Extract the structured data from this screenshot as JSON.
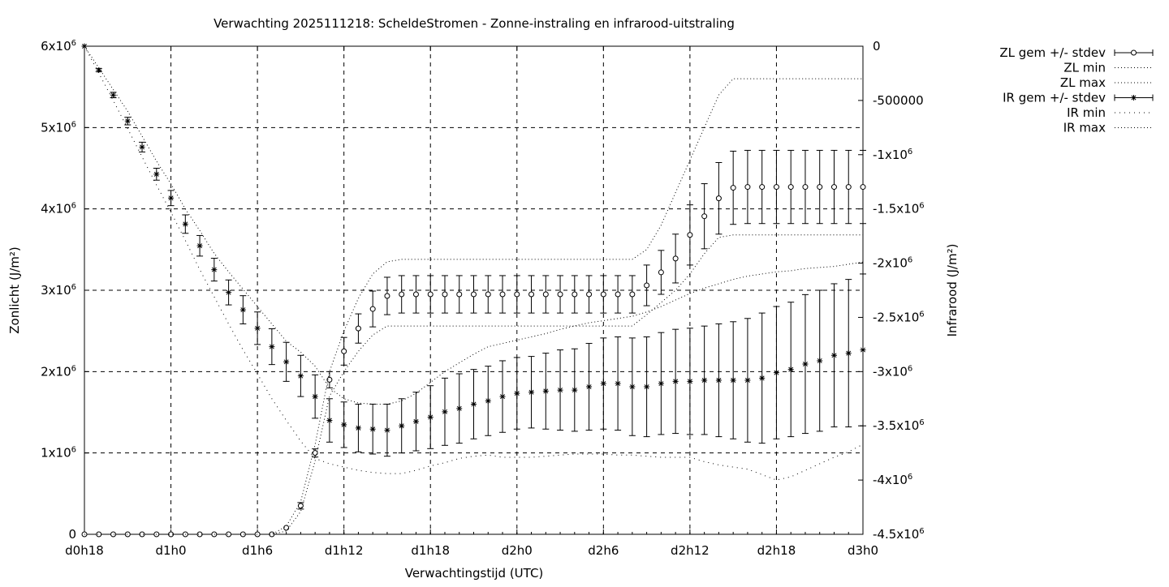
{
  "chart_data": {
    "type": "line",
    "title": "Verwachting 2025111218: ScheldeStromen - Zonne-instraling en infrarood-uitstraling",
    "xlabel": "Verwachtingstijd (UTC)",
    "ylabel": "Zonlicht (J/m²)",
    "y2label": "Infrarood (J/m²)",
    "x_unit": "forecast hour",
    "xlim": [
      18,
      72
    ],
    "ylim": [
      0,
      6000000
    ],
    "y2lim": [
      -4500000,
      0
    ],
    "grid": true,
    "legend_position": "outside-top-right",
    "x_ticks": [
      {
        "x": 18,
        "label": "d0h18"
      },
      {
        "x": 24,
        "label": "d1h0"
      },
      {
        "x": 30,
        "label": "d1h6"
      },
      {
        "x": 36,
        "label": "d1h12"
      },
      {
        "x": 42,
        "label": "d1h18"
      },
      {
        "x": 48,
        "label": "d2h0"
      },
      {
        "x": 54,
        "label": "d2h6"
      },
      {
        "x": 60,
        "label": "d2h12"
      },
      {
        "x": 66,
        "label": "d2h18"
      },
      {
        "x": 72,
        "label": "d3h0"
      }
    ],
    "y_ticks": [
      {
        "v": 0,
        "base": "0",
        "exp": ""
      },
      {
        "v": 1000000,
        "base": "1x10",
        "exp": "6"
      },
      {
        "v": 2000000,
        "base": "2x10",
        "exp": "6"
      },
      {
        "v": 3000000,
        "base": "3x10",
        "exp": "6"
      },
      {
        "v": 4000000,
        "base": "4x10",
        "exp": "6"
      },
      {
        "v": 5000000,
        "base": "5x10",
        "exp": "6"
      },
      {
        "v": 6000000,
        "base": "6x10",
        "exp": "6"
      }
    ],
    "y2_ticks": [
      {
        "v": 0,
        "base": "0",
        "exp": ""
      },
      {
        "v": -500000,
        "base": "-500000",
        "exp": ""
      },
      {
        "v": -1000000,
        "base": "-1x10",
        "exp": "6"
      },
      {
        "v": -1500000,
        "base": "-1.5x10",
        "exp": "6"
      },
      {
        "v": -2000000,
        "base": "-2x10",
        "exp": "6"
      },
      {
        "v": -2500000,
        "base": "-2.5x10",
        "exp": "6"
      },
      {
        "v": -3000000,
        "base": "-3x10",
        "exp": "6"
      },
      {
        "v": -3500000,
        "base": "-3.5x10",
        "exp": "6"
      },
      {
        "v": -4000000,
        "base": "-4x10",
        "exp": "6"
      },
      {
        "v": -4500000,
        "base": "-4.5x10",
        "exp": "6"
      }
    ],
    "series": [
      {
        "name": "ZL gem +/- stdev",
        "axis": "y1",
        "marker": "circle",
        "x": [
          18,
          19,
          20,
          21,
          22,
          23,
          24,
          25,
          26,
          27,
          28,
          29,
          30,
          31,
          32,
          33,
          34,
          35,
          36,
          37,
          38,
          39,
          40,
          41,
          42,
          43,
          44,
          45,
          46,
          47,
          48,
          49,
          50,
          51,
          52,
          53,
          54,
          55,
          56,
          57,
          58,
          59,
          60,
          61,
          62,
          63,
          64,
          65,
          66,
          67,
          68,
          69,
          70,
          71,
          72
        ],
        "y": [
          0,
          0,
          0,
          0,
          0,
          0,
          0,
          0,
          0,
          0,
          0,
          0,
          0,
          0,
          80000,
          350000,
          1000000,
          1900000,
          2250000,
          2530000,
          2770000,
          2930000,
          2950000,
          2950000,
          2950000,
          2950000,
          2950000,
          2950000,
          2950000,
          2950000,
          2950000,
          2950000,
          2950000,
          2950000,
          2950000,
          2950000,
          2950000,
          2950000,
          2950000,
          3060000,
          3220000,
          3390000,
          3680000,
          3910000,
          4130000,
          4260000,
          4270000,
          4270000,
          4270000,
          4270000,
          4270000,
          4270000,
          4270000,
          4270000,
          4270000
        ],
        "err": [
          0,
          0,
          0,
          0,
          0,
          0,
          0,
          0,
          0,
          0,
          0,
          0,
          0,
          0,
          0,
          40000,
          50000,
          100000,
          170000,
          180000,
          220000,
          230000,
          230000,
          230000,
          230000,
          230000,
          230000,
          230000,
          230000,
          230000,
          230000,
          230000,
          230000,
          230000,
          230000,
          230000,
          230000,
          230000,
          230000,
          250000,
          270000,
          300000,
          370000,
          400000,
          440000,
          450000,
          450000,
          450000,
          450000,
          450000,
          450000,
          450000,
          450000,
          450000,
          450000
        ]
      },
      {
        "name": "ZL min",
        "axis": "y1",
        "style": "dotted",
        "x": [
          18,
          19,
          20,
          21,
          22,
          23,
          24,
          25,
          26,
          27,
          28,
          29,
          30,
          31,
          32,
          33,
          34,
          35,
          36,
          37,
          38,
          39,
          40,
          41,
          42,
          43,
          44,
          45,
          46,
          47,
          48,
          49,
          50,
          51,
          52,
          53,
          54,
          55,
          56,
          57,
          58,
          59,
          60,
          61,
          62,
          63,
          64,
          65,
          66,
          67,
          68,
          69,
          70,
          71,
          72
        ],
        "y": [
          0,
          0,
          0,
          0,
          0,
          0,
          0,
          0,
          0,
          0,
          0,
          0,
          0,
          0,
          40000,
          280000,
          900000,
          1700000,
          2000000,
          2250000,
          2450000,
          2560000,
          2560000,
          2560000,
          2560000,
          2560000,
          2560000,
          2560000,
          2560000,
          2560000,
          2560000,
          2560000,
          2560000,
          2560000,
          2560000,
          2560000,
          2560000,
          2560000,
          2560000,
          2700000,
          2850000,
          3000000,
          3200000,
          3450000,
          3650000,
          3680000,
          3680000,
          3680000,
          3680000,
          3680000,
          3680000,
          3680000,
          3680000,
          3680000,
          3680000
        ]
      },
      {
        "name": "ZL max",
        "axis": "y1",
        "style": "dotted",
        "x": [
          18,
          19,
          20,
          21,
          22,
          23,
          24,
          25,
          26,
          27,
          28,
          29,
          30,
          31,
          32,
          33,
          34,
          35,
          36,
          37,
          38,
          39,
          40,
          41,
          42,
          43,
          44,
          45,
          46,
          47,
          48,
          49,
          50,
          51,
          52,
          53,
          54,
          55,
          56,
          57,
          58,
          59,
          60,
          61,
          62,
          63,
          64,
          65,
          66,
          67,
          68,
          69,
          70,
          71,
          72
        ],
        "y": [
          0,
          0,
          0,
          0,
          0,
          0,
          0,
          0,
          0,
          0,
          0,
          0,
          0,
          0,
          100000,
          400000,
          1100000,
          2000000,
          2500000,
          2900000,
          3200000,
          3350000,
          3380000,
          3380000,
          3380000,
          3380000,
          3380000,
          3380000,
          3380000,
          3380000,
          3380000,
          3380000,
          3380000,
          3380000,
          3380000,
          3380000,
          3380000,
          3380000,
          3380000,
          3500000,
          3800000,
          4200000,
          4600000,
          5000000,
          5400000,
          5600000,
          5600000,
          5600000,
          5600000,
          5600000,
          5600000,
          5600000,
          5600000,
          5600000,
          5600000
        ]
      },
      {
        "name": "IR gem +/- stdev",
        "axis": "y2",
        "marker": "star",
        "x": [
          18,
          19,
          20,
          21,
          22,
          23,
          24,
          25,
          26,
          27,
          28,
          29,
          30,
          31,
          32,
          33,
          34,
          35,
          36,
          37,
          38,
          39,
          40,
          41,
          42,
          43,
          44,
          45,
          46,
          47,
          48,
          49,
          50,
          51,
          52,
          53,
          54,
          55,
          56,
          57,
          58,
          59,
          60,
          61,
          62,
          63,
          64,
          65,
          66,
          67,
          68,
          69,
          70,
          71,
          72
        ],
        "y": [
          0,
          -220000,
          -450000,
          -690000,
          -930000,
          -1180000,
          -1400000,
          -1640000,
          -1840000,
          -2060000,
          -2270000,
          -2430000,
          -2600000,
          -2770000,
          -2910000,
          -3040000,
          -3230000,
          -3450000,
          -3490000,
          -3520000,
          -3530000,
          -3540000,
          -3500000,
          -3460000,
          -3420000,
          -3370000,
          -3340000,
          -3300000,
          -3270000,
          -3230000,
          -3200000,
          -3190000,
          -3180000,
          -3170000,
          -3170000,
          -3140000,
          -3110000,
          -3110000,
          -3140000,
          -3140000,
          -3110000,
          -3090000,
          -3090000,
          -3080000,
          -3080000,
          -3080000,
          -3080000,
          -3060000,
          -3010000,
          -2980000,
          -2930000,
          -2900000,
          -2850000,
          -2830000,
          -2800000
        ],
        "err": [
          0,
          15000,
          25000,
          35000,
          45000,
          55000,
          70000,
          85000,
          95000,
          105000,
          115000,
          130000,
          150000,
          165000,
          180000,
          190000,
          200000,
          200000,
          210000,
          220000,
          230000,
          240000,
          250000,
          270000,
          290000,
          310000,
          320000,
          320000,
          320000,
          330000,
          330000,
          330000,
          350000,
          370000,
          380000,
          400000,
          420000,
          430000,
          450000,
          460000,
          470000,
          480000,
          490000,
          500000,
          520000,
          540000,
          570000,
          600000,
          610000,
          620000,
          640000,
          650000,
          660000,
          680000,
          700000
        ]
      },
      {
        "name": "IR min",
        "axis": "y2",
        "style": "dotted",
        "x": [
          18,
          19,
          20,
          21,
          22,
          23,
          24,
          25,
          26,
          27,
          28,
          29,
          30,
          31,
          32,
          33,
          34,
          35,
          36,
          37,
          38,
          39,
          40,
          41,
          42,
          43,
          44,
          45,
          46,
          47,
          48,
          49,
          50,
          51,
          52,
          53,
          54,
          55,
          56,
          57,
          58,
          59,
          60,
          61,
          62,
          63,
          64,
          65,
          66,
          67,
          68,
          69,
          70,
          71,
          72
        ],
        "y": [
          0,
          -250000,
          -500000,
          -760000,
          -1020000,
          -1280000,
          -1530000,
          -1790000,
          -2060000,
          -2310000,
          -2560000,
          -2800000,
          -3020000,
          -3250000,
          -3450000,
          -3640000,
          -3800000,
          -3850000,
          -3880000,
          -3910000,
          -3930000,
          -3940000,
          -3940000,
          -3910000,
          -3870000,
          -3840000,
          -3800000,
          -3780000,
          -3770000,
          -3790000,
          -3790000,
          -3790000,
          -3780000,
          -3770000,
          -3760000,
          -3760000,
          -3760000,
          -3770000,
          -3770000,
          -3780000,
          -3790000,
          -3790000,
          -3790000,
          -3830000,
          -3860000,
          -3880000,
          -3900000,
          -3950000,
          -4000000,
          -3970000,
          -3910000,
          -3850000,
          -3790000,
          -3740000,
          -3670000
        ]
      },
      {
        "name": "IR max",
        "axis": "y2",
        "style": "dotted",
        "x": [
          18,
          19,
          20,
          21,
          22,
          23,
          24,
          25,
          26,
          27,
          28,
          29,
          30,
          31,
          32,
          33,
          34,
          35,
          36,
          37,
          38,
          39,
          40,
          41,
          42,
          43,
          44,
          45,
          46,
          47,
          48,
          49,
          50,
          51,
          52,
          53,
          54,
          55,
          56,
          57,
          58,
          59,
          60,
          61,
          62,
          63,
          64,
          65,
          66,
          67,
          68,
          69,
          70,
          71,
          72
        ],
        "y": [
          0,
          -200000,
          -400000,
          -600000,
          -830000,
          -1060000,
          -1270000,
          -1500000,
          -1700000,
          -1910000,
          -2080000,
          -2240000,
          -2400000,
          -2560000,
          -2720000,
          -2820000,
          -2950000,
          -3150000,
          -3250000,
          -3290000,
          -3300000,
          -3300000,
          -3270000,
          -3200000,
          -3100000,
          -3000000,
          -2920000,
          -2840000,
          -2770000,
          -2740000,
          -2710000,
          -2680000,
          -2650000,
          -2610000,
          -2580000,
          -2550000,
          -2530000,
          -2510000,
          -2490000,
          -2450000,
          -2400000,
          -2340000,
          -2280000,
          -2230000,
          -2190000,
          -2150000,
          -2120000,
          -2100000,
          -2080000,
          -2070000,
          -2050000,
          -2040000,
          -2030000,
          -2010000,
          -1990000
        ]
      }
    ]
  }
}
